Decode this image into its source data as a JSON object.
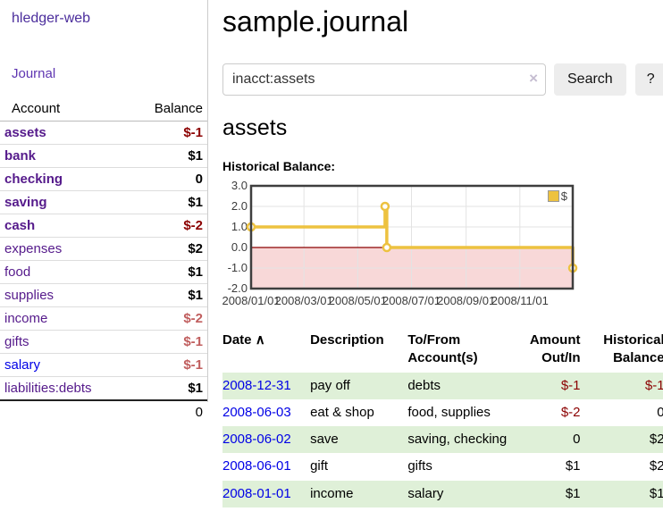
{
  "brand": "hledger-web",
  "nav": {
    "journal": "Journal"
  },
  "sidebar": {
    "header": {
      "account": "Account",
      "balance": "Balance"
    },
    "accounts": [
      {
        "name": "assets",
        "balance": "$-1"
      },
      {
        "name": "bank",
        "balance": "$1"
      },
      {
        "name": "checking",
        "balance": "0"
      },
      {
        "name": "saving",
        "balance": "$1"
      },
      {
        "name": "cash",
        "balance": "$-2"
      },
      {
        "name": "expenses",
        "balance": "$2"
      },
      {
        "name": "food",
        "balance": "$1"
      },
      {
        "name": "supplies",
        "balance": "$1"
      },
      {
        "name": "income",
        "balance": "$-2"
      },
      {
        "name": "gifts",
        "balance": "$-1"
      },
      {
        "name": "salary",
        "balance": "$-1"
      },
      {
        "name": "liabilities:debts",
        "balance": "$1"
      }
    ],
    "total": "0"
  },
  "main": {
    "title": "sample.journal",
    "search": {
      "value": "inacct:assets",
      "clear_label": "×",
      "button_label": "Search",
      "help_label": "?"
    },
    "account_heading": "assets",
    "chart_heading": "Historical Balance:"
  },
  "chart_data": {
    "type": "line",
    "step": true,
    "title": "Historical Balance:",
    "series": [
      {
        "name": "$",
        "color": "#edc240",
        "points": [
          [
            "2008-01-01",
            1
          ],
          [
            "2008-06-01",
            2
          ],
          [
            "2008-06-03",
            0
          ],
          [
            "2008-12-31",
            -1
          ]
        ]
      }
    ],
    "xrange": [
      "2008-01-01",
      "2008-12-31"
    ],
    "x_tick_labels": [
      "2008/01/01",
      "2008/03/01",
      "2008/05/01",
      "2008/07/01",
      "2008/09/01",
      "2008/11/01"
    ],
    "y_ticks": [
      "3.0",
      "2.0",
      "1.0",
      "0.0",
      "-1.0",
      "-2.0"
    ],
    "ylim": [
      -2,
      3
    ],
    "grid": true,
    "legend": {
      "label": "$",
      "position": "top-right"
    },
    "negative_fill": "#f8d8d8",
    "zero_line_color": "#8b0000",
    "border_color": "#3e3e3e"
  },
  "register": {
    "headers": {
      "date": "Date",
      "description": "Description",
      "accounts": "To/From Account(s)",
      "amount": "Amount Out/In",
      "balance": "Historical Balance"
    },
    "sort_icon": "∧",
    "rows": [
      {
        "date": "2008-12-31",
        "description": "pay off",
        "accounts": "debts",
        "amount": "$-1",
        "balance": "$-1"
      },
      {
        "date": "2008-06-03",
        "description": "eat & shop",
        "accounts": "food, supplies",
        "amount": "$-2",
        "balance": "0"
      },
      {
        "date": "2008-06-02",
        "description": "save",
        "accounts": "saving, checking",
        "amount": "0",
        "balance": "$2"
      },
      {
        "date": "2008-06-01",
        "description": "gift",
        "accounts": "gifts",
        "amount": "$1",
        "balance": "$2"
      },
      {
        "date": "2008-01-01",
        "description": "income",
        "accounts": "salary",
        "amount": "$1",
        "balance": "$1"
      }
    ]
  },
  "colors": {
    "link_purple": "#551a8b",
    "link_blue": "#0000e6",
    "negative_strong": "#8b0000",
    "negative_soft": "#c05e5e",
    "stripe_green": "#dff0d8",
    "series_gold": "#edc240"
  }
}
